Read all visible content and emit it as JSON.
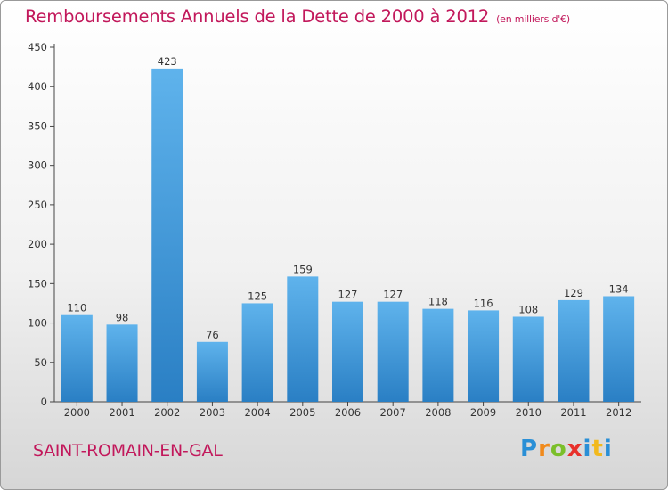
{
  "header": {
    "title": "Remboursements Annuels de la Dette de 2000 à 2012",
    "unit_note": "(en milliers d'€)"
  },
  "footer": {
    "city": "SAINT-ROMAIN-EN-GAL",
    "logo_text": "Proxiti"
  },
  "colors": {
    "title": "#c2185b",
    "bar_light": "#5fb3ec",
    "bar_dark": "#2a7fc4",
    "axis": "#444444",
    "grid": "#c8c8c8"
  },
  "chart_data": {
    "type": "bar",
    "title": "Remboursements Annuels de la Dette de 2000 à 2012",
    "categories": [
      "2000",
      "2001",
      "2002",
      "2003",
      "2004",
      "2005",
      "2006",
      "2007",
      "2008",
      "2009",
      "2010",
      "2011",
      "2012"
    ],
    "values": [
      110,
      98,
      423,
      76,
      125,
      159,
      127,
      127,
      118,
      116,
      108,
      129,
      134
    ],
    "xlabel": "",
    "ylabel": "",
    "ylim": [
      0,
      450
    ],
    "yticks": [
      0,
      50,
      100,
      150,
      200,
      250,
      300,
      350,
      400,
      450
    ],
    "grid": false,
    "legend": "none"
  }
}
